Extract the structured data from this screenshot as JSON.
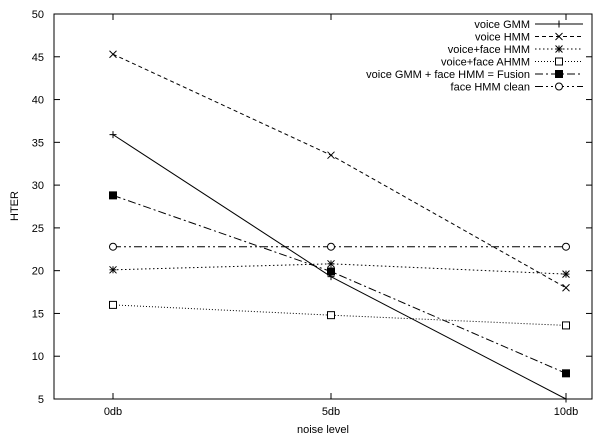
{
  "chart_data": {
    "type": "line",
    "categories": [
      "0db",
      "5db",
      "10db"
    ],
    "xlabel": "noise level",
    "ylabel": "HTER",
    "ylim": [
      5,
      50
    ],
    "yticks": [
      "5",
      "10",
      "15",
      "20",
      "25",
      "30",
      "35",
      "40",
      "45",
      "50"
    ],
    "grid": false,
    "legend_position": "top-right",
    "series": [
      {
        "name": "voice GMM",
        "marker": "plus",
        "dash": "solid",
        "values": [
          35.9,
          19.3,
          5.0
        ]
      },
      {
        "name": "voice HMM",
        "marker": "x",
        "dash": "dashed",
        "values": [
          45.3,
          33.5,
          18.0
        ]
      },
      {
        "name": "voice+face HMM",
        "marker": "star",
        "dash": "dotted",
        "values": [
          20.1,
          20.8,
          19.6
        ]
      },
      {
        "name": "voice+face AHMM",
        "marker": "open-square",
        "dash": "fine-dotted",
        "values": [
          16.0,
          14.8,
          13.6
        ]
      },
      {
        "name": "voice GMM + face HMM = Fusion",
        "marker": "filled-square",
        "dash": "dash-dot",
        "values": [
          28.8,
          19.9,
          8.0
        ]
      },
      {
        "name": "face HMM clean",
        "marker": "open-circle",
        "dash": "dash-dot-dot",
        "values": [
          22.8,
          22.8,
          22.8
        ]
      }
    ]
  }
}
